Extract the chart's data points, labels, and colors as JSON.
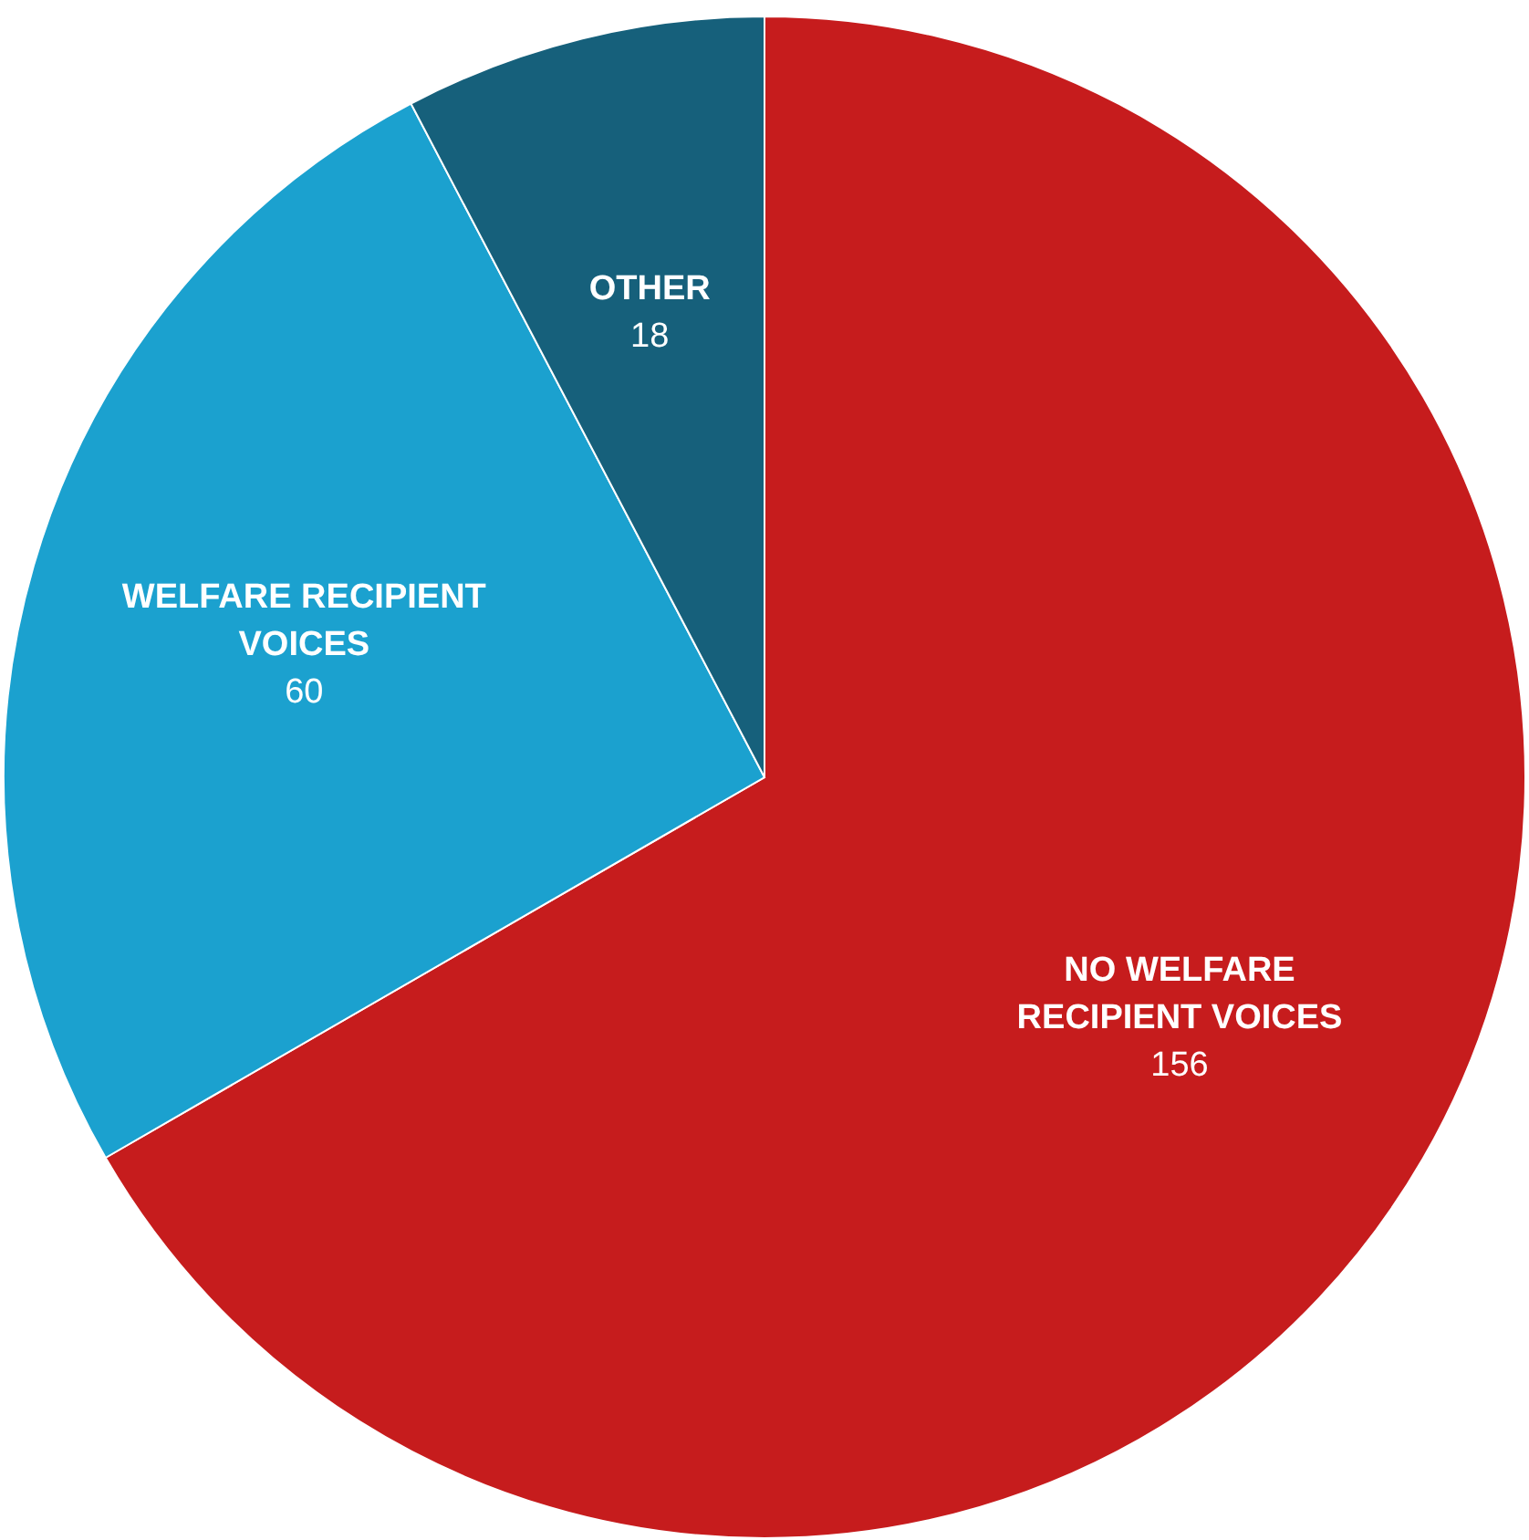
{
  "chart_data": {
    "type": "pie",
    "categories": [
      "NO WELFARE RECIPIENT VOICES",
      "WELFARE RECIPIENT VOICES",
      "OTHER"
    ],
    "values": [
      156,
      60,
      18
    ],
    "colors": [
      "#c61c1d",
      "#1ba1cf",
      "#16607b"
    ],
    "data_labels": true
  }
}
